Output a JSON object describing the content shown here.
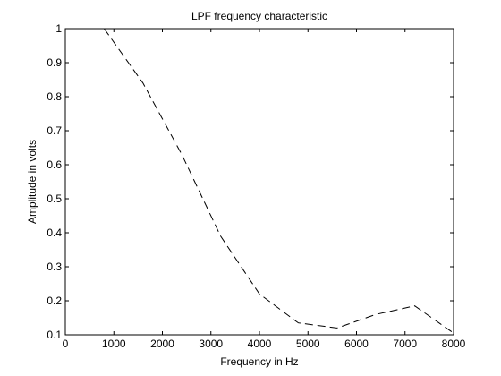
{
  "chart_data": {
    "type": "line",
    "title": "LPF frequency characteristic",
    "xlabel": "Frequency in Hz",
    "ylabel": "Amplitude in volts",
    "xlim": [
      0,
      8000
    ],
    "ylim": [
      0.1,
      1
    ],
    "x_ticks": [
      "0",
      "1000",
      "2000",
      "3000",
      "4000",
      "5000",
      "6000",
      "7000",
      "8000"
    ],
    "y_ticks": [
      "0.1",
      "0.2",
      "0.3",
      "0.4",
      "0.5",
      "0.6",
      "0.7",
      "0.8",
      "0.9",
      "1"
    ],
    "grid": false,
    "series": [
      {
        "line_style": "dashed",
        "color": "#000000",
        "x": [
          800,
          1600,
          2400,
          3200,
          4000,
          4800,
          5600,
          6400,
          7200,
          8000
        ],
        "y": [
          1.0,
          0.84,
          0.63,
          0.39,
          0.22,
          0.135,
          0.12,
          0.16,
          0.185,
          0.105
        ]
      }
    ]
  }
}
